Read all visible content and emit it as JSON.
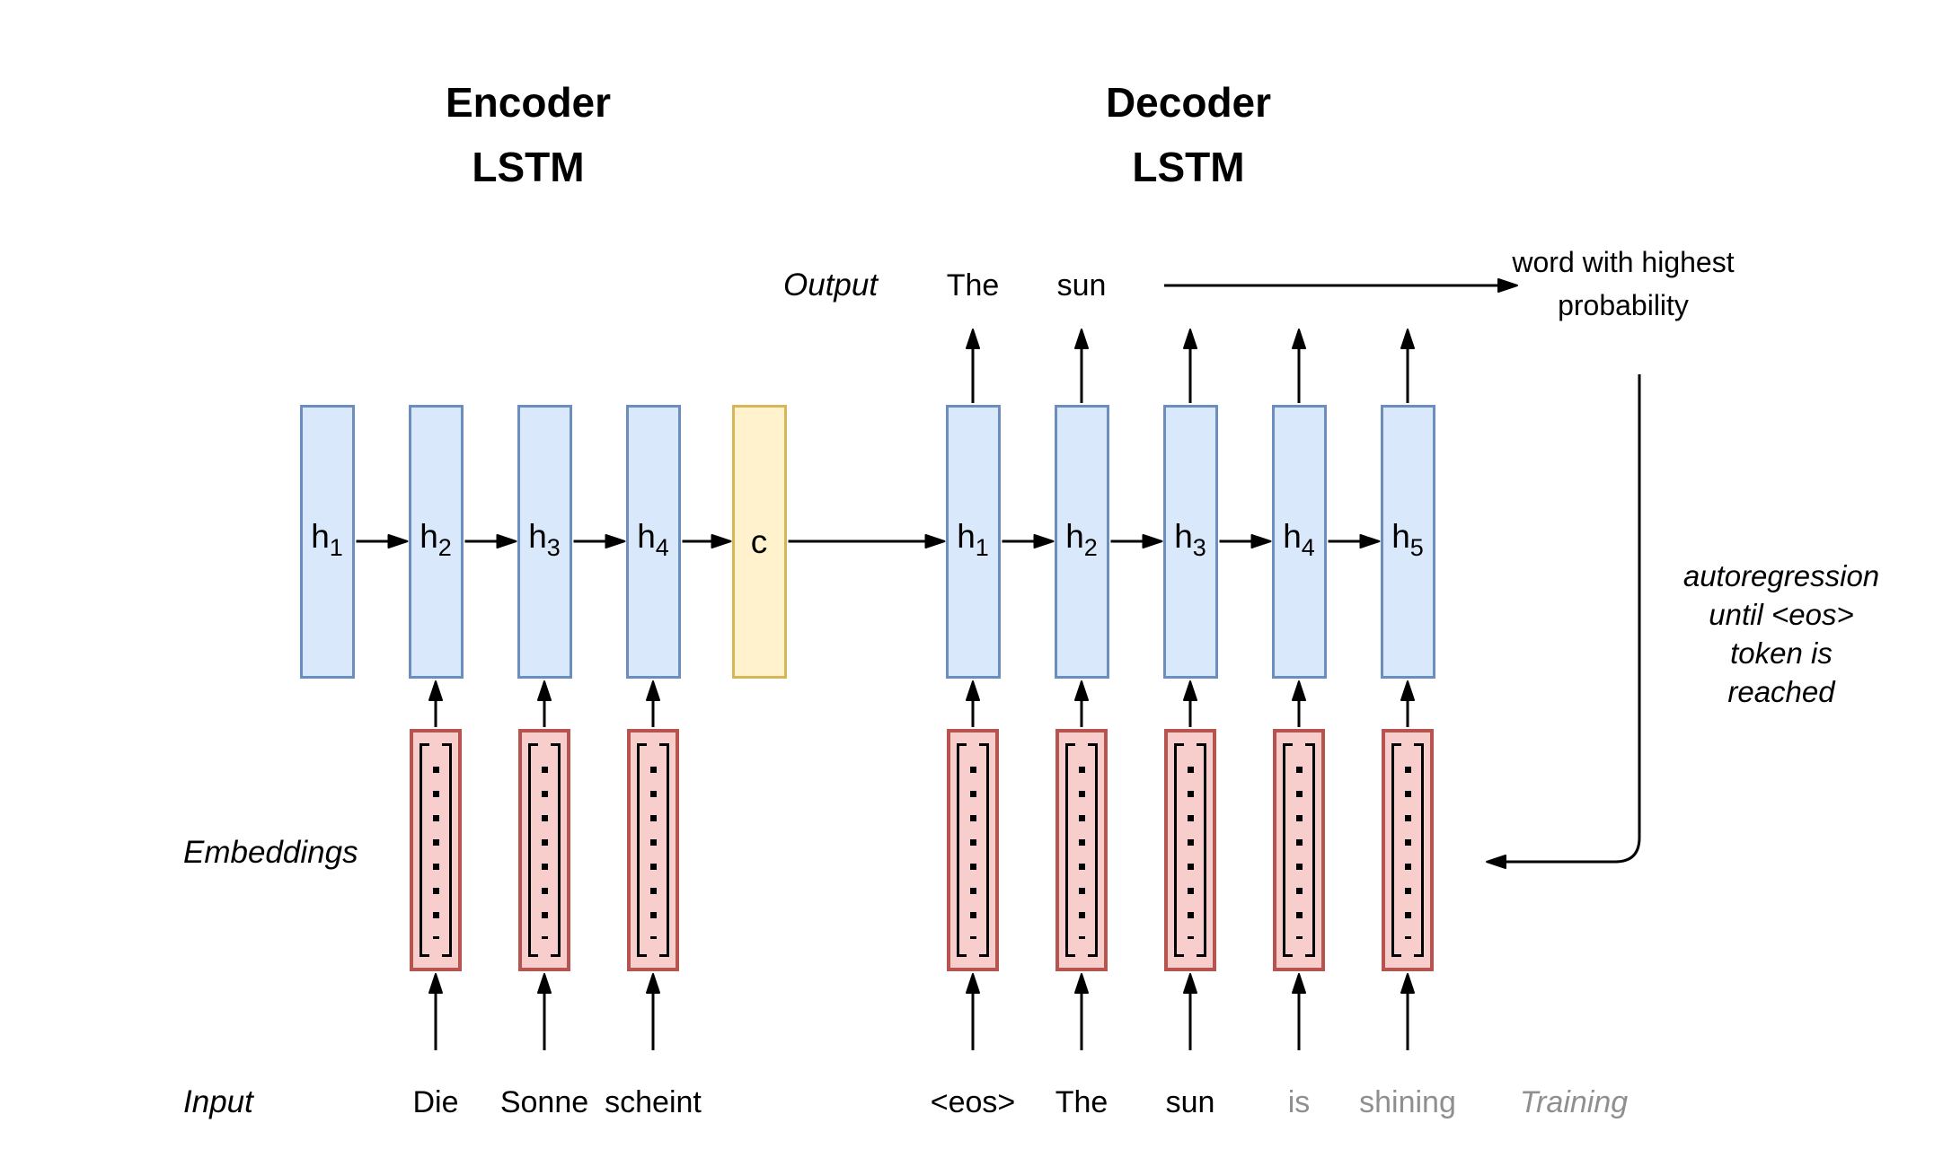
{
  "encoder": {
    "title_line1": "Encoder",
    "title_line2": "LSTM",
    "units": [
      {
        "base": "h",
        "sub": "1"
      },
      {
        "base": "h",
        "sub": "2"
      },
      {
        "base": "h",
        "sub": "3"
      },
      {
        "base": "h",
        "sub": "4"
      }
    ],
    "context_label": "c",
    "input_words": [
      {
        "text": "Die",
        "muted": false
      },
      {
        "text": "Sonne",
        "muted": false
      },
      {
        "text": "scheint",
        "muted": false
      }
    ]
  },
  "decoder": {
    "title_line1": "Decoder",
    "title_line2": "LSTM",
    "units": [
      {
        "base": "h",
        "sub": "1"
      },
      {
        "base": "h",
        "sub": "2"
      },
      {
        "base": "h",
        "sub": "3"
      },
      {
        "base": "h",
        "sub": "4"
      },
      {
        "base": "h",
        "sub": "5"
      }
    ],
    "input_words": [
      {
        "text": "<eos>",
        "muted": false
      },
      {
        "text": "The",
        "muted": false
      },
      {
        "text": "sun",
        "muted": false
      },
      {
        "text": "is",
        "muted": true
      },
      {
        "text": "shining",
        "muted": true
      }
    ],
    "output_words": [
      "The",
      "sun"
    ]
  },
  "labels": {
    "output": "Output",
    "input": "Input",
    "embeddings": "Embeddings",
    "training": "Training"
  },
  "annotations": {
    "highest_probability": [
      "word with highest",
      "probability"
    ],
    "autoregression": [
      "autoregression",
      "until <eos>",
      "token is",
      "reached"
    ]
  },
  "colors": {
    "unit_fill": "#dae8fc",
    "unit_stroke": "#6c8ebf",
    "context_fill": "#fff2cc",
    "context_stroke": "#d6b656",
    "embedding_fill": "#f8cecc",
    "embedding_stroke": "#b85450",
    "muted_text": "#8f8f8f",
    "line": "#000000"
  }
}
